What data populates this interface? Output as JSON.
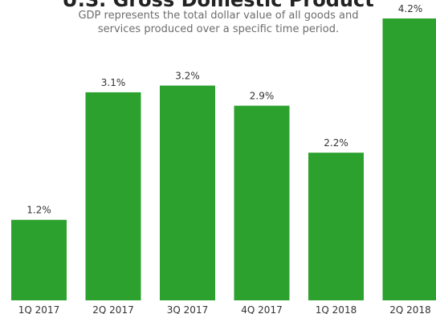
{
  "chart_data": {
    "type": "bar",
    "title": "U.S. Gross Domestic Product",
    "subtitle": "GDP represents the total dollar value of all goods and services produced over a specific time period.",
    "categories": [
      "1Q 2017",
      "2Q 2017",
      "3Q 2017",
      "4Q 2017",
      "1Q 2018",
      "2Q 2018"
    ],
    "values": [
      1.2,
      3.1,
      3.2,
      2.9,
      2.2,
      4.2
    ],
    "value_labels": [
      "1.2%",
      "3.1%",
      "3.2%",
      "2.9%",
      "2.2%",
      "4.2%"
    ],
    "xlabel": "",
    "ylabel": "",
    "ylim": [
      0,
      4.2
    ],
    "grid": false,
    "legend": "none",
    "bar_color": "#2ca12e"
  }
}
